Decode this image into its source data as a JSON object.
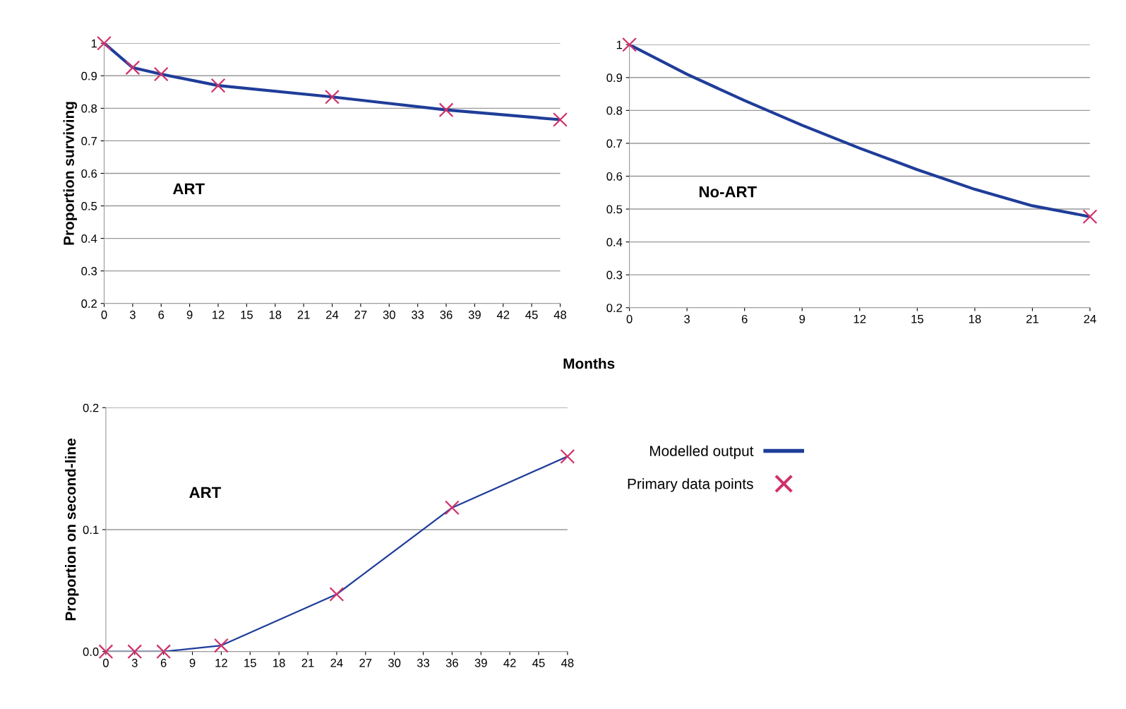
{
  "chart_data": [
    {
      "type": "line",
      "xlabel": "Months",
      "ylabel": "Proportion surviving",
      "annotations": [
        "ART"
      ],
      "xlim": [
        0,
        48
      ],
      "ylim": [
        0.2,
        1
      ],
      "xticks": [
        0,
        3,
        6,
        9,
        12,
        15,
        18,
        21,
        24,
        27,
        30,
        33,
        36,
        39,
        42,
        45,
        48
      ],
      "yticks": [
        0.2,
        0.3,
        0.4,
        0.5,
        0.6,
        0.7,
        0.8,
        0.9,
        1
      ],
      "grid": "y",
      "legend": false,
      "series": [
        {
          "color": "#1f3d99",
          "x": [
            0,
            3,
            6,
            12,
            24,
            36,
            48
          ],
          "values": [
            1,
            0.925,
            0.905,
            0.87,
            0.835,
            0.795,
            0.765
          ]
        },
        {
          "type": "scatter",
          "color": "#d0306a",
          "marker": "cross",
          "x": [
            0,
            3,
            6,
            12,
            24,
            36,
            48
          ],
          "values": [
            1,
            0.925,
            0.905,
            0.87,
            0.835,
            0.795,
            0.765
          ]
        }
      ]
    },
    {
      "type": "line",
      "annotations": [
        "No-ART"
      ],
      "xlim": [
        0,
        24
      ],
      "ylim": [
        0.2,
        1
      ],
      "xticks": [
        0,
        3,
        6,
        9,
        12,
        15,
        18,
        21,
        24
      ],
      "yticks": [
        0.2,
        0.3,
        0.4,
        0.5,
        0.6,
        0.7,
        0.8,
        0.9,
        1
      ],
      "grid": "y",
      "legend": false,
      "series": [
        {
          "color": "#1f3d99",
          "x": [
            0,
            3,
            6,
            9,
            12,
            15,
            18,
            21,
            24
          ],
          "values": [
            1,
            0.91,
            0.83,
            0.755,
            0.685,
            0.62,
            0.56,
            0.51,
            0.477
          ]
        },
        {
          "type": "scatter",
          "color": "#d0306a",
          "marker": "cross",
          "x": [
            0,
            24
          ],
          "values": [
            1,
            0.477
          ]
        }
      ]
    },
    {
      "type": "line",
      "ylabel": "Proportion on second-line",
      "annotations": [
        "ART"
      ],
      "xlim": [
        0,
        48
      ],
      "ylim": [
        0,
        0.2
      ],
      "xticks": [
        0,
        3,
        6,
        9,
        12,
        15,
        18,
        21,
        24,
        27,
        30,
        33,
        36,
        39,
        42,
        45,
        48
      ],
      "yticks": [
        {
          "value": 0,
          "label": "0.0"
        },
        {
          "value": 0.1,
          "label": "0.1"
        },
        {
          "value": 0.2,
          "label": "0.2"
        }
      ],
      "grid": "y",
      "legend": "right",
      "series": [
        {
          "name": "Modelled output",
          "color": "#1f3d99",
          "x": [
            0,
            3,
            6,
            12,
            24,
            36,
            48
          ],
          "values": [
            0,
            0,
            0,
            0.005,
            0.047,
            0.118,
            0.16
          ]
        },
        {
          "type": "scatter",
          "name": "Primary data points",
          "color": "#d0306a",
          "marker": "cross",
          "x": [
            0,
            3,
            6,
            12,
            24,
            36,
            48
          ],
          "values": [
            0,
            0,
            0,
            0.005,
            0.047,
            0.118,
            0.16
          ]
        }
      ]
    }
  ]
}
